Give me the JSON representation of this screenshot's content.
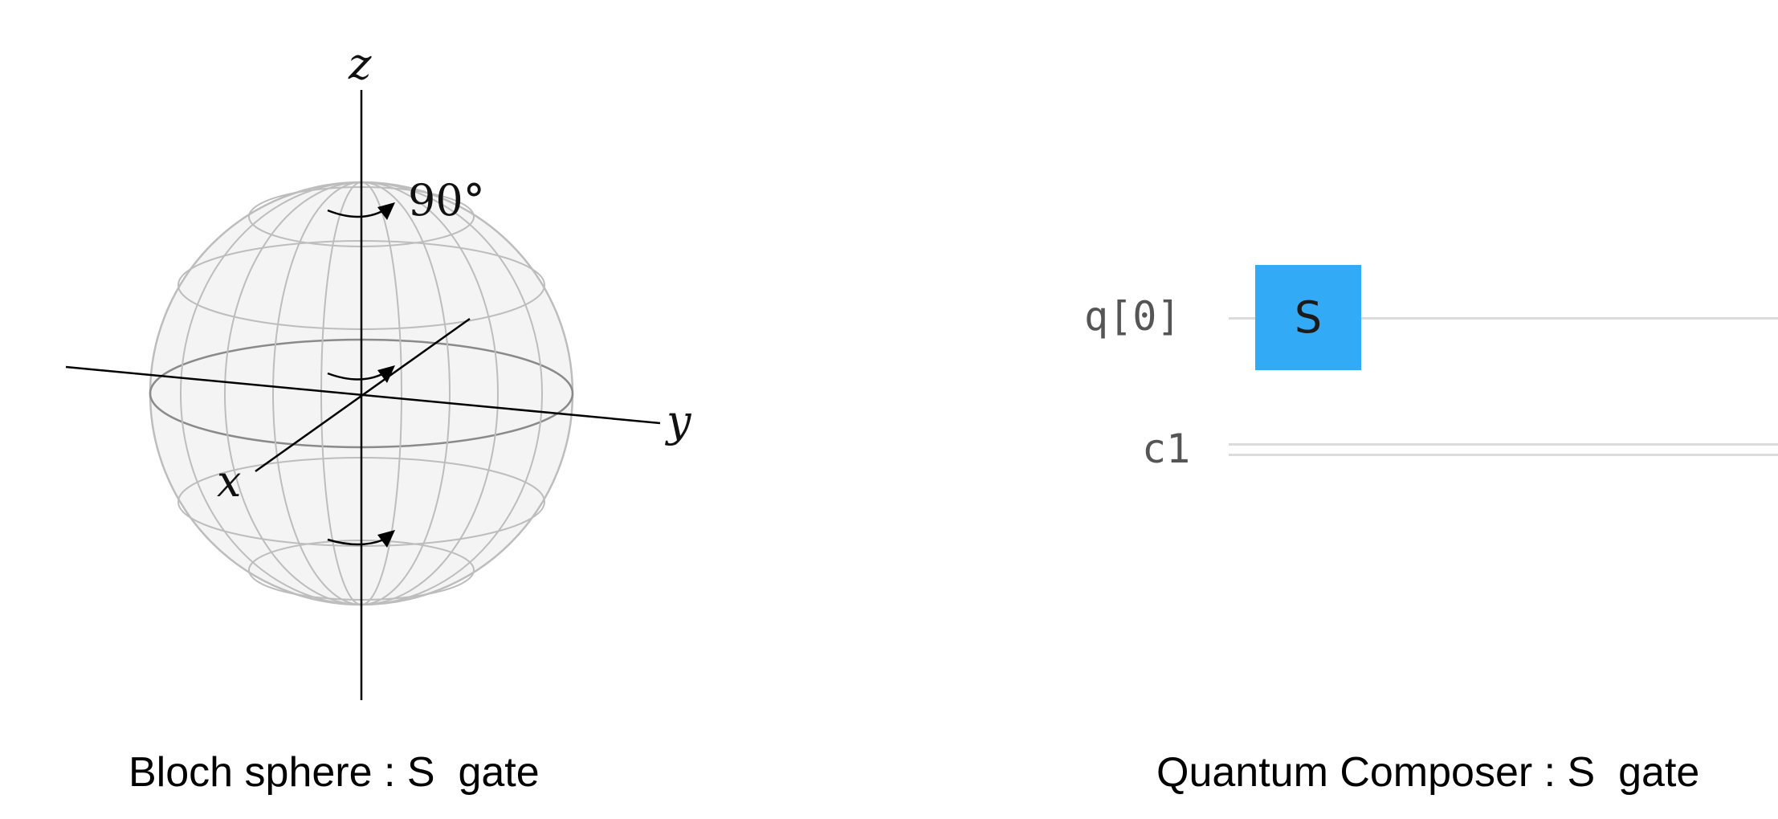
{
  "bloch": {
    "axes": {
      "z": "z",
      "y": "y",
      "x": "x"
    },
    "rotation_angle": "90°",
    "caption": "Bloch sphere : S  gate"
  },
  "composer": {
    "qubit_label": "q[0]",
    "classical_label": "c1",
    "gate": {
      "label": "S",
      "color": "#33aaf5"
    },
    "caption": "Quantum Composer : S  gate"
  },
  "colors": {
    "sphere_fill": "#f4f4f4",
    "sphere_grid": "#bdbdbd",
    "wire": "#dcdcdc"
  }
}
